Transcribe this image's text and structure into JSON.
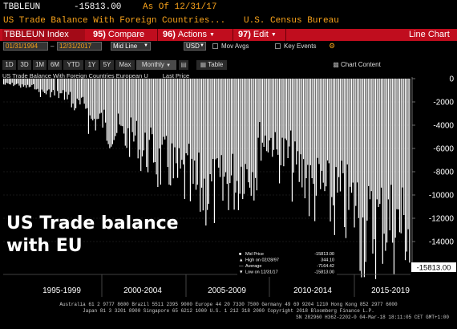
{
  "header": {
    "ticker": "TBBLEUN",
    "value": "-15813.00",
    "as_of": "As Of 12/31/17",
    "description": "US Trade Balance With Foreign Countries...",
    "source": "U.S. Census Bureau"
  },
  "toolbar": {
    "index_label": "TBBLEUN Index",
    "compare_num": "95)",
    "compare_label": "Compare",
    "actions_num": "96)",
    "actions_label": "Actions",
    "edit_num": "97)",
    "edit_label": "Edit",
    "chart_type": "Line Chart"
  },
  "daterow": {
    "start_date": "01/31/1994",
    "end_date": "12/31/2017",
    "mode": "Mid Line",
    "currency": "USD",
    "mov_avgs": "Mov Avgs",
    "key_events": "Key Events"
  },
  "periods": [
    "1D",
    "3D",
    "1M",
    "6M",
    "YTD",
    "1Y",
    "5Y",
    "Max",
    "Monthly",
    "Table"
  ],
  "active_period": "Monthly",
  "chart_content": "Chart Content",
  "legend": {
    "series": "US Trade Balance With Foreign Countries European U",
    "field": "Last Price"
  },
  "overlay": {
    "line1": "US Trade balance",
    "line2": "with EU"
  },
  "stats": {
    "mid_label": "Mid Price",
    "mid_value": "-15813.00",
    "high_label": "High on 02/28/97",
    "high_value": "344.10",
    "avg_label": "Average",
    "avg_value": "-7164.42",
    "low_label": "Low on 12/31/17",
    "low_value": "-15813.00"
  },
  "last_value_label": "-15813.00",
  "footer": {
    "line1": "Australia 61 2 9777 8600 Brazil 5511 2395 9000 Europe 44 20 7330 7500 Germany 49 69 9204 1210 Hong Kong 852 2977 6000",
    "line2": "Japan 81 3 3201 8900          Singapore 65 6212 1000          U.S. 1 212 318 2000          Copyright 2018 Bloomberg Finance L.P.",
    "line3": "SN 282960 H362-2202-0 04-Mar-18 18:11:05 CET  GMT+1:00"
  },
  "chart_data": {
    "type": "bar",
    "title": "",
    "series_name": "US Trade Balance With Foreign Countries European U",
    "x_range": [
      "1994-01",
      "2017-12"
    ],
    "x_tick_labels": [
      "1995-1999",
      "2000-2004",
      "2005-2009",
      "2010-2014",
      "2015-2019"
    ],
    "ylim": [
      -16000,
      0
    ],
    "y_ticks": [
      0,
      -2000,
      -4000,
      -6000,
      -8000,
      -10000,
      -12000,
      -14000
    ],
    "y_tick_labels": [
      "0",
      "-2000",
      "-4000",
      "-6000",
      "-8000",
      "-10000",
      "-12000",
      "-14000"
    ],
    "last_value": -15813,
    "annual_avg": [
      {
        "year": 1994,
        "value": -500
      },
      {
        "year": 1995,
        "value": -700
      },
      {
        "year": 1996,
        "value": -1200
      },
      {
        "year": 1997,
        "value": -1400
      },
      {
        "year": 1998,
        "value": -2300
      },
      {
        "year": 1999,
        "value": -3600
      },
      {
        "year": 2000,
        "value": -4500
      },
      {
        "year": 2001,
        "value": -5100
      },
      {
        "year": 2002,
        "value": -6300
      },
      {
        "year": 2003,
        "value": -7400
      },
      {
        "year": 2004,
        "value": -8600
      },
      {
        "year": 2005,
        "value": -9700
      },
      {
        "year": 2006,
        "value": -9800
      },
      {
        "year": 2007,
        "value": -8800
      },
      {
        "year": 2008,
        "value": -7800
      },
      {
        "year": 2009,
        "value": -5300
      },
      {
        "year": 2010,
        "value": -6700
      },
      {
        "year": 2011,
        "value": -8000
      },
      {
        "year": 2012,
        "value": -9600
      },
      {
        "year": 2013,
        "value": -10500
      },
      {
        "year": 2014,
        "value": -11000
      },
      {
        "year": 2015,
        "value": -13000
      },
      {
        "year": 2016,
        "value": -12300
      },
      {
        "year": 2017,
        "value": -12700
      }
    ],
    "extremes": {
      "high": 344.1,
      "high_date": "1997-02",
      "low": -15813,
      "low_date": "2017-12",
      "average": -7164.42
    }
  },
  "colors": {
    "toolbar_red": "#c00d1e",
    "orange": "#f7a21b",
    "bar": "#ffffff",
    "background": "#000000"
  }
}
